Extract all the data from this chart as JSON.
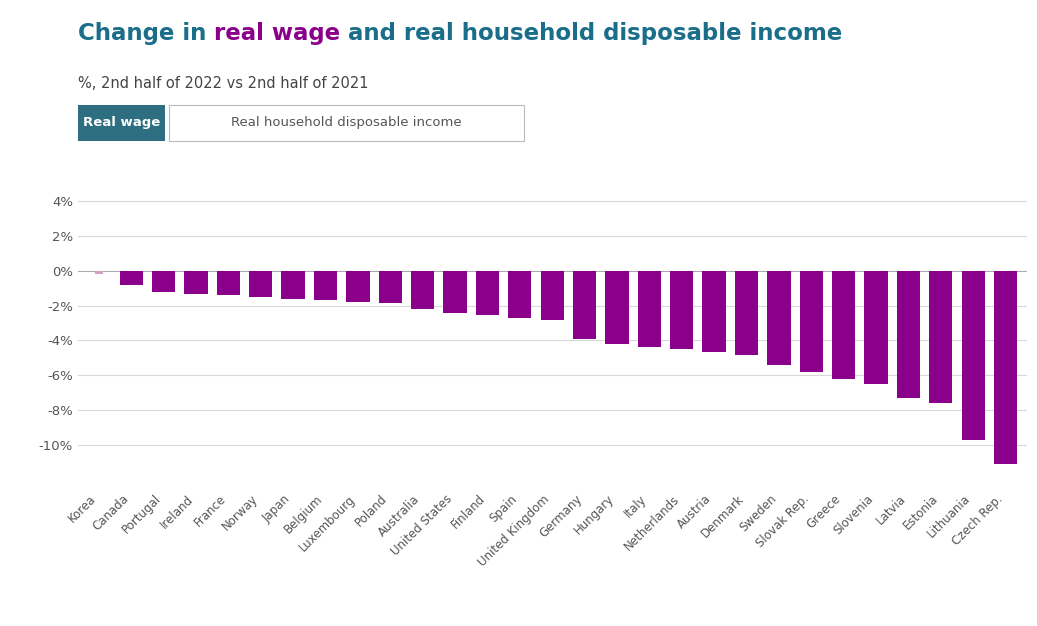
{
  "title_seg1": "Change in ",
  "title_seg2": "real wage",
  "title_seg3": " and real household disposable income",
  "subtitle": "%, 2nd half of 2022 vs 2nd half of 2021",
  "legend_label1": "Real wage",
  "legend_label2": "Real household disposable income",
  "categories": [
    "Korea",
    "Canada",
    "Portugal",
    "Ireland",
    "France",
    "Norway",
    "Japan",
    "Belgium",
    "Luxembourg",
    "Poland",
    "Australia",
    "United States",
    "Finland",
    "Spain",
    "United Kingdom",
    "Germany",
    "Hungary",
    "Italy",
    "Netherlands",
    "Austria",
    "Denmark",
    "Sweden",
    "Slovak Rep.",
    "Greece",
    "Slovenia",
    "Latvia",
    "Estonia",
    "Lithuania",
    "Czech Rep."
  ],
  "values": [
    -0.2,
    -0.8,
    -1.2,
    -1.3,
    -1.4,
    -1.5,
    -1.6,
    -1.7,
    -1.8,
    -1.85,
    -2.2,
    -2.4,
    -2.55,
    -2.7,
    -2.85,
    -3.9,
    -4.2,
    -4.35,
    -4.5,
    -4.65,
    -4.85,
    -5.4,
    -5.8,
    -6.2,
    -6.5,
    -7.3,
    -7.6,
    -9.7,
    -11.1
  ],
  "bar_color": "#8B008B",
  "korea_bar_color": "#d4a0c0",
  "background_color": "#ffffff",
  "grid_color": "#d8d8d8",
  "ylim_min": -12.5,
  "ylim_max": 5.5,
  "ytick_vals": [
    4,
    2,
    0,
    -2,
    -4,
    -6,
    -8,
    -10
  ],
  "title_color_main": "#1a6e8a",
  "title_color_wage": "#8B008B",
  "subtitle_color": "#444444",
  "legend_bg1": "#2d6e80",
  "legend_text1": "#ffffff",
  "legend_text2": "#555555",
  "legend_border2": "#bbbbbb"
}
